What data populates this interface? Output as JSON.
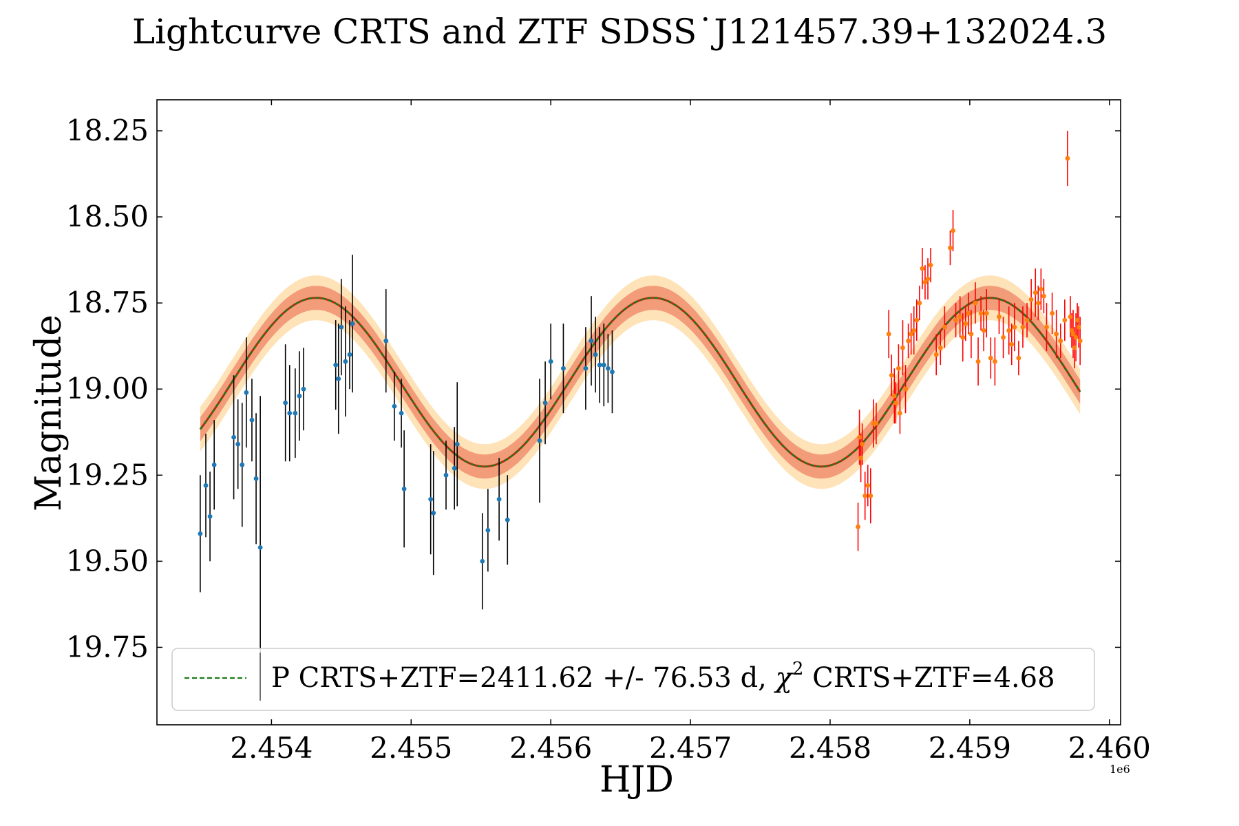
{
  "chart_data": {
    "type": "scatter",
    "title": "Lightcurve CRTS and ZTF SDSS˙J121457.39+132024.3",
    "xlabel": "HJD",
    "ylabel": "Magnitude",
    "x_offset_label": "1e6",
    "xlim": [
      2453180,
      2460080
    ],
    "ylim": [
      19.975,
      18.16
    ],
    "x_ticks": [
      2454000,
      2455000,
      2456000,
      2457000,
      2458000,
      2459000,
      2460000
    ],
    "x_tick_labels": [
      "2.454",
      "2.455",
      "2.456",
      "2.457",
      "2.458",
      "2.459",
      "2.460"
    ],
    "y_ticks": [
      18.25,
      18.5,
      18.75,
      19.0,
      19.25,
      19.5,
      19.75
    ],
    "y_tick_labels": [
      "18.25",
      "18.50",
      "18.75",
      "19.00",
      "19.25",
      "19.50",
      "19.75"
    ],
    "legend": {
      "position": "lower-center",
      "label": "P CRTS+ZTF=2411.62 +/- 76.53 d, χ² CRTS+ZTF=4.68",
      "label_main": "P CRTS+ZTF=2411.62 +/- 76.53 d, ",
      "label_chi": "χ",
      "label_sup": "2",
      "label_tail": " CRTS+ZTF=4.68"
    },
    "model": {
      "name": "P CRTS+ZTF",
      "period": 2411.62,
      "period_err": 76.53,
      "mean": 18.98,
      "amplitude": 0.245,
      "peak_hjd": 2454320,
      "x_range": [
        2453490,
        2459790
      ],
      "band_inner": 0.035,
      "band_outer": 0.065,
      "line_color": "#1a7a1a",
      "inner_band_color": "#f08a6a",
      "outer_band_color": "#ffd9a0"
    },
    "series": [
      {
        "name": "CRTS",
        "marker_color": "#1f77b4",
        "errorbar_color": "#000000",
        "x": [
          2453490,
          2453530,
          2453560,
          2453590,
          2453730,
          2453760,
          2453790,
          2453820,
          2453860,
          2453890,
          2453920,
          2454100,
          2454130,
          2454170,
          2454200,
          2454230,
          2454460,
          2454480,
          2454500,
          2454530,
          2454560,
          2454580,
          2454820,
          2454880,
          2454930,
          2454950,
          2455140,
          2455160,
          2455250,
          2455310,
          2455330,
          2455510,
          2455550,
          2455630,
          2455690,
          2455920,
          2455960,
          2456000,
          2456090,
          2456250,
          2456290,
          2456320,
          2456350,
          2456380,
          2456410,
          2456440
        ],
        "y": [
          19.42,
          19.28,
          19.37,
          19.22,
          19.14,
          19.16,
          19.22,
          19.01,
          19.09,
          19.26,
          19.46,
          19.04,
          19.07,
          19.07,
          19.02,
          19.0,
          18.93,
          18.97,
          18.82,
          18.92,
          18.9,
          18.81,
          18.86,
          19.05,
          19.07,
          19.29,
          19.32,
          19.36,
          19.25,
          19.23,
          19.16,
          19.5,
          19.41,
          19.32,
          19.38,
          19.15,
          19.04,
          18.92,
          18.94,
          18.94,
          18.86,
          18.9,
          18.93,
          18.93,
          18.94,
          18.95
        ],
        "err": [
          0.17,
          0.15,
          0.13,
          0.13,
          0.18,
          0.13,
          0.18,
          0.16,
          0.12,
          0.19,
          0.44,
          0.17,
          0.14,
          0.13,
          0.13,
          0.12,
          0.13,
          0.16,
          0.14,
          0.16,
          0.1,
          0.2,
          0.15,
          0.1,
          0.1,
          0.17,
          0.16,
          0.18,
          0.1,
          0.12,
          0.18,
          0.14,
          0.12,
          0.12,
          0.13,
          0.18,
          0.12,
          0.11,
          0.13,
          0.12,
          0.13,
          0.11,
          0.11,
          0.12,
          0.1,
          0.12
        ]
      },
      {
        "name": "ZTF",
        "marker_color": "#ff7f0e",
        "errorbar_color": "#ff0000",
        "x": [
          2458200,
          2458210,
          2458220,
          2458230,
          2458250,
          2458270,
          2458290,
          2458310,
          2458330,
          2458420,
          2458440,
          2458460,
          2458470,
          2458490,
          2458500,
          2458520,
          2458540,
          2458560,
          2458580,
          2458600,
          2458620,
          2458640,
          2458660,
          2458680,
          2458700,
          2458720,
          2458760,
          2458790,
          2458820,
          2458860,
          2458880,
          2458900,
          2458930,
          2458950,
          2458970,
          2458990,
          2459010,
          2459040,
          2459060,
          2459080,
          2459100,
          2459120,
          2459150,
          2459180,
          2459210,
          2459240,
          2459280,
          2459300,
          2459320,
          2459350,
          2459380,
          2459410,
          2459440,
          2459470,
          2459490,
          2459510,
          2459530,
          2459550,
          2459590,
          2459620,
          2459650,
          2459680,
          2459700,
          2459720,
          2459730,
          2459740,
          2459750,
          2459760,
          2459770,
          2459780,
          2459790
        ],
        "y": [
          19.4,
          19.14,
          19.2,
          19.16,
          19.31,
          19.28,
          19.31,
          19.1,
          19.1,
          18.84,
          18.96,
          19.02,
          19.04,
          18.94,
          19.07,
          18.88,
          19.0,
          18.86,
          18.84,
          18.83,
          18.8,
          18.75,
          18.65,
          18.69,
          18.68,
          18.64,
          18.9,
          18.88,
          18.82,
          18.59,
          18.54,
          18.8,
          18.79,
          18.85,
          18.81,
          18.78,
          18.84,
          18.75,
          18.92,
          18.78,
          18.83,
          18.78,
          18.91,
          18.92,
          18.79,
          18.85,
          18.83,
          18.87,
          18.82,
          18.91,
          18.82,
          18.8,
          18.74,
          18.72,
          18.75,
          18.71,
          18.73,
          18.82,
          18.78,
          18.84,
          18.86,
          18.8,
          18.33,
          18.79,
          18.83,
          18.84,
          18.88,
          18.85,
          18.8,
          18.82,
          18.86
        ],
        "err": [
          0.07,
          0.08,
          0.07,
          0.06,
          0.07,
          0.06,
          0.08,
          0.07,
          0.06,
          0.07,
          0.06,
          0.08,
          0.06,
          0.07,
          0.06,
          0.08,
          0.07,
          0.05,
          0.06,
          0.07,
          0.06,
          0.05,
          0.06,
          0.05,
          0.06,
          0.05,
          0.06,
          0.05,
          0.06,
          0.05,
          0.06,
          0.05,
          0.06,
          0.07,
          0.05,
          0.06,
          0.07,
          0.06,
          0.07,
          0.05,
          0.06,
          0.07,
          0.06,
          0.07,
          0.05,
          0.06,
          0.07,
          0.06,
          0.07,
          0.05,
          0.06,
          0.05,
          0.06,
          0.07,
          0.05,
          0.06,
          0.05,
          0.07,
          0.06,
          0.07,
          0.05,
          0.06,
          0.08,
          0.06,
          0.05,
          0.07,
          0.06,
          0.07,
          0.05,
          0.06,
          0.07
        ]
      }
    ]
  }
}
